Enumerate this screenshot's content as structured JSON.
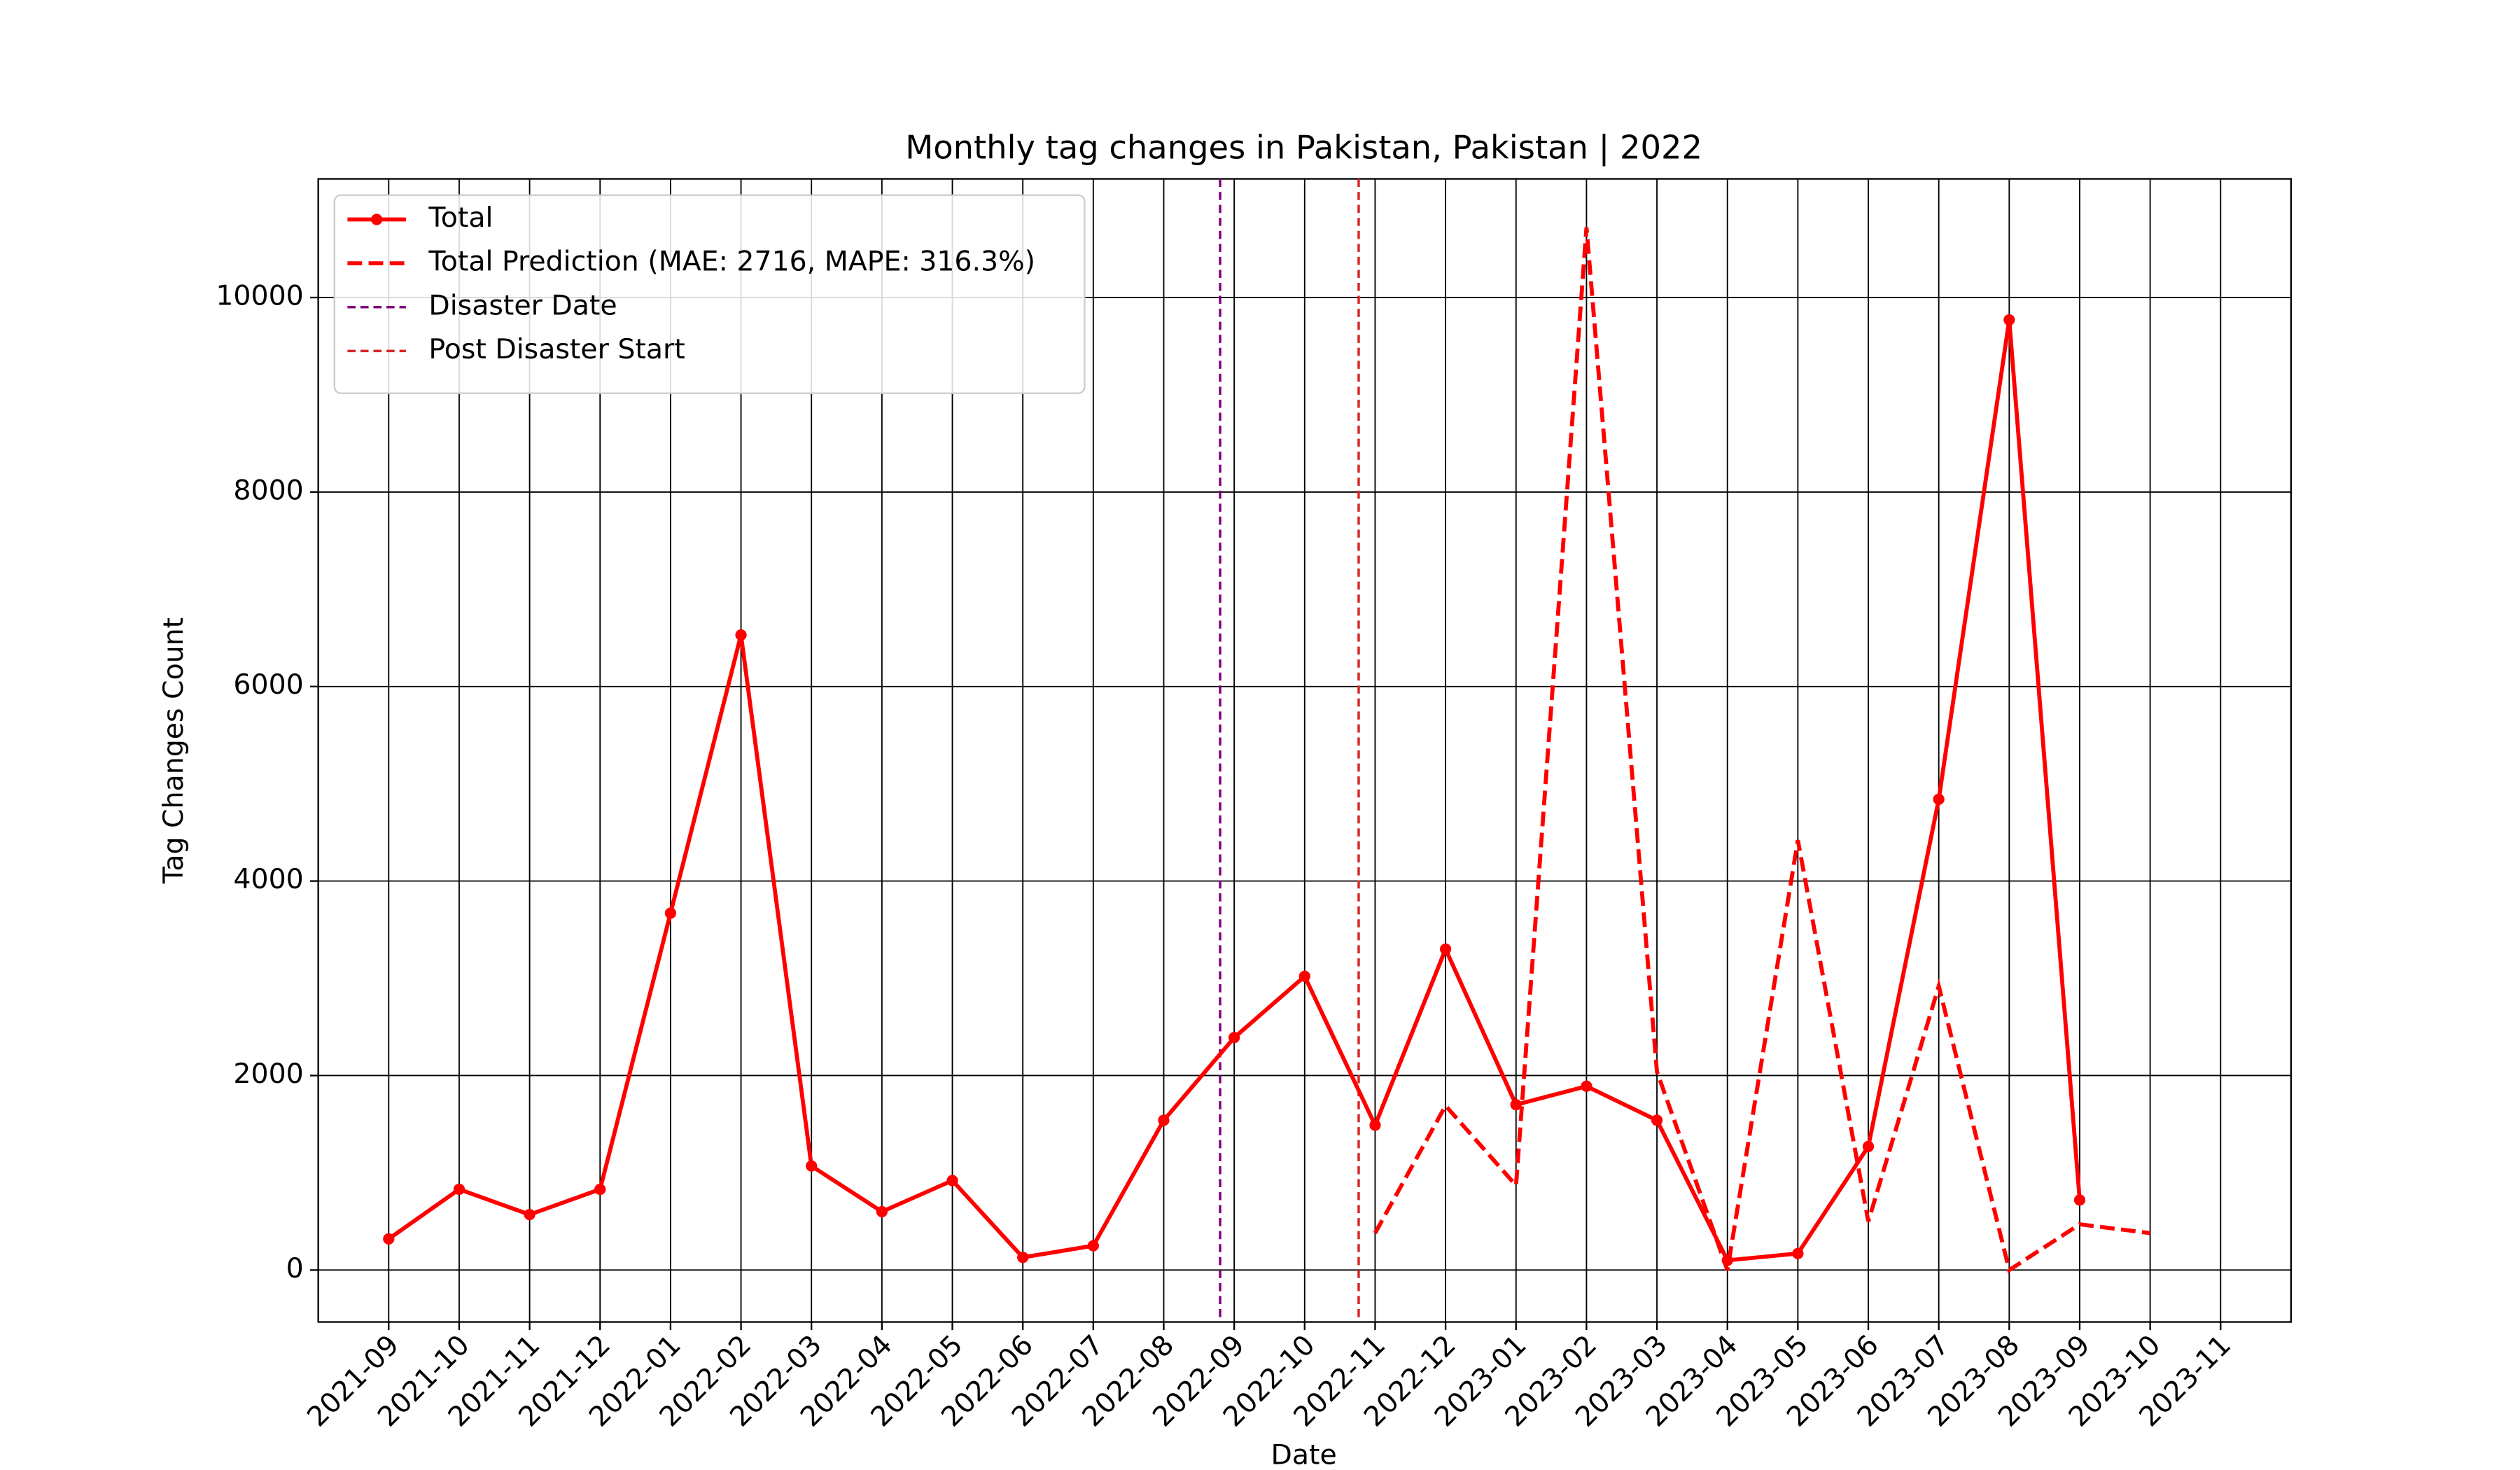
{
  "chart_data": {
    "type": "line",
    "title": "Monthly tag changes in Pakistan, Pakistan | 2022",
    "xlabel": "Date",
    "ylabel": "Tag Changes Count",
    "x": [
      "2021-09",
      "2021-10",
      "2021-11",
      "2021-12",
      "2022-01",
      "2022-02",
      "2022-03",
      "2022-04",
      "2022-05",
      "2022-06",
      "2022-07",
      "2022-08",
      "2022-09",
      "2022-10",
      "2022-11",
      "2022-12",
      "2023-01",
      "2023-02",
      "2023-03",
      "2023-04",
      "2023-05",
      "2023-06",
      "2023-07",
      "2023-08",
      "2023-09",
      "2023-10"
    ],
    "series": [
      {
        "name": "Total",
        "color": "#ff0000",
        "style": "solid",
        "marker": true,
        "values": [
          320,
          830,
          570,
          830,
          3670,
          6530,
          1070,
          600,
          920,
          130,
          250,
          1540,
          2390,
          3020,
          1490,
          3300,
          1700,
          1890,
          1540,
          100,
          170,
          1270,
          4840,
          9770,
          720,
          null
        ]
      },
      {
        "name": "Total Prediction (MAE: 2716, MAPE: 316.3%)",
        "color": "#ff0000",
        "style": "dashed",
        "marker": false,
        "values": [
          null,
          null,
          null,
          null,
          null,
          null,
          null,
          null,
          null,
          null,
          null,
          null,
          null,
          null,
          380,
          1690,
          870,
          10720,
          2040,
          0,
          4420,
          500,
          2920,
          0,
          470,
          380
        ]
      }
    ],
    "vlines": [
      {
        "name": "Disaster Date",
        "x": "2022-08-25",
        "color": "#800080"
      },
      {
        "name": "Post Disaster Start",
        "x": "2022-10-24",
        "color": "#d62728"
      }
    ],
    "xlim": [
      "2021-08",
      "2023-12"
    ],
    "ylim": [
      -534,
      11220
    ],
    "xticks": [
      "2021-09",
      "2021-10",
      "2021-11",
      "2021-12",
      "2022-01",
      "2022-02",
      "2022-03",
      "2022-04",
      "2022-05",
      "2022-06",
      "2022-07",
      "2022-08",
      "2022-09",
      "2022-10",
      "2022-11",
      "2022-12",
      "2023-01",
      "2023-02",
      "2023-03",
      "2023-04",
      "2023-05",
      "2023-06",
      "2023-07",
      "2023-08",
      "2023-09",
      "2023-10",
      "2023-11"
    ],
    "yticks": [
      0,
      2000,
      4000,
      6000,
      8000,
      10000
    ],
    "grid": true,
    "legend": "upper left"
  }
}
